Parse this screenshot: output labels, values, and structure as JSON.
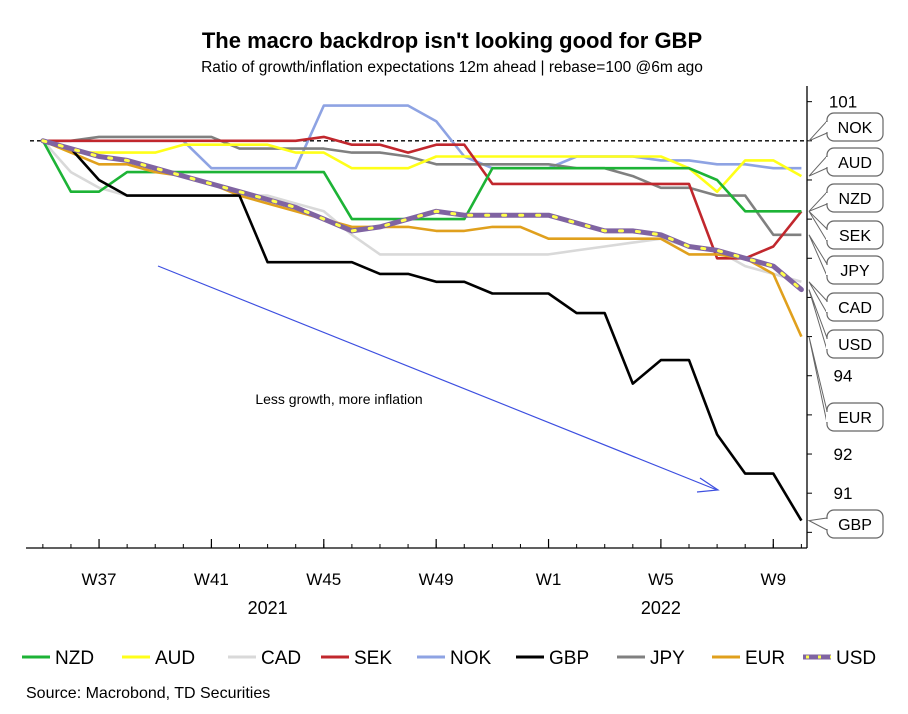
{
  "chart_data": {
    "type": "line",
    "title": "The macro backdrop isn't looking good for GBP",
    "subtitle": "Ratio of growth/inflation expectations 12m ahead | rebase=100 @6m ago",
    "source": "Source: Macrobond, TD Securities",
    "annotation": "Less growth, more inflation",
    "x_ticks": [
      "W37",
      "W41",
      "W45",
      "W49",
      "W1",
      "W5",
      "W9"
    ],
    "x_tick_weeks": [
      2,
      6,
      10,
      14,
      18,
      22,
      26
    ],
    "x_range": [
      -0.6,
      27.2
    ],
    "years": [
      {
        "label": "2021",
        "week": 8
      },
      {
        "label": "2022",
        "week": 22
      }
    ],
    "y_ticks": [
      "101",
      "94",
      "92",
      "91"
    ],
    "y_tick_values": [
      101,
      94,
      92,
      91
    ],
    "ylim": [
      89.6,
      101.4
    ],
    "reference_line": 100,
    "colors": {
      "NZD": "#1db336",
      "AUD": "#ffff19",
      "CAD": "#d9d9d9",
      "SEK": "#c1272d",
      "NOK": "#8ea3e3",
      "GBP": "#000000",
      "JPY": "#808080",
      "EUR": "#e0a01d",
      "USD": "#8064a2",
      "USD_dots": "#ffff4d",
      "arrow": "#3d4fe0"
    },
    "series": [
      {
        "name": "NZD",
        "values": [
          [
            0,
            100
          ],
          [
            1,
            98.7
          ],
          [
            2,
            98.7
          ],
          [
            3,
            99.2
          ],
          [
            4,
            99.2
          ],
          [
            5,
            99.2
          ],
          [
            6,
            99.2
          ],
          [
            7,
            99.2
          ],
          [
            8,
            99.2
          ],
          [
            9,
            99.2
          ],
          [
            10,
            99.2
          ],
          [
            11,
            98.0
          ],
          [
            12,
            98.0
          ],
          [
            13,
            98.0
          ],
          [
            14,
            98.0
          ],
          [
            15,
            98.0
          ],
          [
            16,
            99.3
          ],
          [
            17,
            99.3
          ],
          [
            18,
            99.3
          ],
          [
            19,
            99.3
          ],
          [
            20,
            99.3
          ],
          [
            21,
            99.3
          ],
          [
            22,
            99.3
          ],
          [
            23,
            99.3
          ],
          [
            24,
            99.0
          ],
          [
            25,
            98.2
          ],
          [
            26,
            98.2
          ],
          [
            27,
            98.2
          ]
        ]
      },
      {
        "name": "AUD",
        "values": [
          [
            0,
            100
          ],
          [
            1,
            99.7
          ],
          [
            2,
            99.7
          ],
          [
            3,
            99.7
          ],
          [
            4,
            99.7
          ],
          [
            5,
            99.9
          ],
          [
            6,
            99.9
          ],
          [
            7,
            99.9
          ],
          [
            8,
            99.9
          ],
          [
            9,
            99.7
          ],
          [
            10,
            99.7
          ],
          [
            11,
            99.3
          ],
          [
            12,
            99.3
          ],
          [
            13,
            99.3
          ],
          [
            14,
            99.6
          ],
          [
            15,
            99.6
          ],
          [
            16,
            99.6
          ],
          [
            17,
            99.6
          ],
          [
            18,
            99.6
          ],
          [
            19,
            99.6
          ],
          [
            20,
            99.6
          ],
          [
            21,
            99.6
          ],
          [
            22,
            99.6
          ],
          [
            23,
            99.3
          ],
          [
            24,
            98.7
          ],
          [
            25,
            99.5
          ],
          [
            26,
            99.5
          ],
          [
            27,
            99.1
          ]
        ]
      },
      {
        "name": "CAD",
        "values": [
          [
            0,
            100
          ],
          [
            1,
            99.2
          ],
          [
            2,
            98.8
          ],
          [
            3,
            98.6
          ],
          [
            4,
            98.6
          ],
          [
            5,
            98.6
          ],
          [
            6,
            98.6
          ],
          [
            7,
            98.6
          ],
          [
            8,
            98.6
          ],
          [
            9,
            98.4
          ],
          [
            10,
            98.2
          ],
          [
            11,
            97.6
          ],
          [
            12,
            97.1
          ],
          [
            13,
            97.1
          ],
          [
            14,
            97.1
          ],
          [
            15,
            97.1
          ],
          [
            16,
            97.1
          ],
          [
            17,
            97.1
          ],
          [
            18,
            97.1
          ],
          [
            19,
            97.2
          ],
          [
            20,
            97.3
          ],
          [
            21,
            97.4
          ],
          [
            22,
            97.5
          ],
          [
            23,
            97.3
          ],
          [
            24,
            97.2
          ],
          [
            25,
            96.8
          ],
          [
            26,
            96.6
          ],
          [
            27,
            96.4
          ]
        ]
      },
      {
        "name": "SEK",
        "values": [
          [
            0,
            100
          ],
          [
            1,
            100
          ],
          [
            2,
            100
          ],
          [
            3,
            100
          ],
          [
            4,
            100
          ],
          [
            5,
            100
          ],
          [
            6,
            100
          ],
          [
            7,
            100
          ],
          [
            8,
            100
          ],
          [
            9,
            100
          ],
          [
            10,
            100.1
          ],
          [
            11,
            99.9
          ],
          [
            12,
            99.9
          ],
          [
            13,
            99.7
          ],
          [
            14,
            99.9
          ],
          [
            15,
            99.9
          ],
          [
            16,
            98.9
          ],
          [
            17,
            98.9
          ],
          [
            18,
            98.9
          ],
          [
            19,
            98.9
          ],
          [
            20,
            98.9
          ],
          [
            21,
            98.9
          ],
          [
            22,
            98.9
          ],
          [
            23,
            98.9
          ],
          [
            24,
            97.0
          ],
          [
            25,
            97.0
          ],
          [
            26,
            97.3
          ],
          [
            27,
            98.2
          ]
        ]
      },
      {
        "name": "NOK",
        "values": [
          [
            0,
            100
          ],
          [
            1,
            100
          ],
          [
            2,
            100
          ],
          [
            3,
            100
          ],
          [
            4,
            100
          ],
          [
            5,
            100
          ],
          [
            6,
            99.3
          ],
          [
            7,
            99.3
          ],
          [
            8,
            99.3
          ],
          [
            9,
            99.3
          ],
          [
            10,
            100.9
          ],
          [
            11,
            100.9
          ],
          [
            12,
            100.9
          ],
          [
            13,
            100.9
          ],
          [
            14,
            100.5
          ],
          [
            15,
            99.6
          ],
          [
            16,
            99.3
          ],
          [
            17,
            99.3
          ],
          [
            18,
            99.3
          ],
          [
            19,
            99.6
          ],
          [
            20,
            99.6
          ],
          [
            21,
            99.6
          ],
          [
            22,
            99.5
          ],
          [
            23,
            99.5
          ],
          [
            24,
            99.4
          ],
          [
            25,
            99.4
          ],
          [
            26,
            99.3
          ],
          [
            27,
            99.3
          ]
        ]
      },
      {
        "name": "GBP",
        "values": [
          [
            0,
            100
          ],
          [
            1,
            99.8
          ],
          [
            2,
            99.0
          ],
          [
            3,
            98.6
          ],
          [
            4,
            98.6
          ],
          [
            5,
            98.6
          ],
          [
            6,
            98.6
          ],
          [
            7,
            98.6
          ],
          [
            8,
            96.9
          ],
          [
            9,
            96.9
          ],
          [
            10,
            96.9
          ],
          [
            11,
            96.9
          ],
          [
            12,
            96.6
          ],
          [
            13,
            96.6
          ],
          [
            14,
            96.4
          ],
          [
            15,
            96.4
          ],
          [
            16,
            96.1
          ],
          [
            17,
            96.1
          ],
          [
            18,
            96.1
          ],
          [
            19,
            95.6
          ],
          [
            20,
            95.6
          ],
          [
            21,
            93.8
          ],
          [
            22,
            94.4
          ],
          [
            23,
            94.4
          ],
          [
            24,
            92.5
          ],
          [
            25,
            91.5
          ],
          [
            26,
            91.5
          ],
          [
            27,
            90.3
          ]
        ]
      },
      {
        "name": "JPY",
        "values": [
          [
            0,
            100
          ],
          [
            1,
            100
          ],
          [
            2,
            100.1
          ],
          [
            3,
            100.1
          ],
          [
            4,
            100.1
          ],
          [
            5,
            100.1
          ],
          [
            6,
            100.1
          ],
          [
            7,
            99.8
          ],
          [
            8,
            99.8
          ],
          [
            9,
            99.8
          ],
          [
            10,
            99.8
          ],
          [
            11,
            99.7
          ],
          [
            12,
            99.7
          ],
          [
            13,
            99.6
          ],
          [
            14,
            99.4
          ],
          [
            15,
            99.4
          ],
          [
            16,
            99.4
          ],
          [
            17,
            99.4
          ],
          [
            18,
            99.4
          ],
          [
            19,
            99.3
          ],
          [
            20,
            99.3
          ],
          [
            21,
            99.1
          ],
          [
            22,
            98.8
          ],
          [
            23,
            98.8
          ],
          [
            24,
            98.6
          ],
          [
            25,
            98.6
          ],
          [
            26,
            97.6
          ],
          [
            27,
            97.6
          ]
        ]
      },
      {
        "name": "EUR",
        "values": [
          [
            0,
            100
          ],
          [
            1,
            99.7
          ],
          [
            2,
            99.4
          ],
          [
            3,
            99.4
          ],
          [
            4,
            99.2
          ],
          [
            5,
            99.1
          ],
          [
            6,
            98.9
          ],
          [
            7,
            98.6
          ],
          [
            8,
            98.4
          ],
          [
            9,
            98.2
          ],
          [
            10,
            98.0
          ],
          [
            11,
            97.8
          ],
          [
            12,
            97.8
          ],
          [
            13,
            97.8
          ],
          [
            14,
            97.7
          ],
          [
            15,
            97.7
          ],
          [
            16,
            97.8
          ],
          [
            17,
            97.8
          ],
          [
            18,
            97.5
          ],
          [
            19,
            97.5
          ],
          [
            20,
            97.5
          ],
          [
            21,
            97.5
          ],
          [
            22,
            97.5
          ],
          [
            23,
            97.1
          ],
          [
            24,
            97.1
          ],
          [
            25,
            97.0
          ],
          [
            26,
            96.6
          ],
          [
            27,
            95.0
          ]
        ]
      },
      {
        "name": "USD",
        "values": [
          [
            0,
            100
          ],
          [
            1,
            99.8
          ],
          [
            2,
            99.6
          ],
          [
            3,
            99.5
          ],
          [
            4,
            99.3
          ],
          [
            5,
            99.1
          ],
          [
            6,
            98.9
          ],
          [
            7,
            98.7
          ],
          [
            8,
            98.5
          ],
          [
            9,
            98.3
          ],
          [
            10,
            98.0
          ],
          [
            11,
            97.7
          ],
          [
            12,
            97.8
          ],
          [
            13,
            98.0
          ],
          [
            14,
            98.2
          ],
          [
            15,
            98.1
          ],
          [
            16,
            98.1
          ],
          [
            17,
            98.1
          ],
          [
            18,
            98.1
          ],
          [
            19,
            97.9
          ],
          [
            20,
            97.7
          ],
          [
            21,
            97.7
          ],
          [
            22,
            97.6
          ],
          [
            23,
            97.3
          ],
          [
            24,
            97.2
          ],
          [
            25,
            97.0
          ],
          [
            26,
            96.8
          ],
          [
            27,
            96.2
          ]
        ]
      }
    ],
    "end_tags": [
      "NOK",
      "AUD",
      "NZD",
      "SEK",
      "JPY",
      "CAD",
      "USD",
      "EUR",
      "GBP"
    ],
    "legend": [
      "NZD",
      "AUD",
      "CAD",
      "SEK",
      "NOK",
      "GBP",
      "JPY",
      "EUR",
      "USD"
    ]
  }
}
